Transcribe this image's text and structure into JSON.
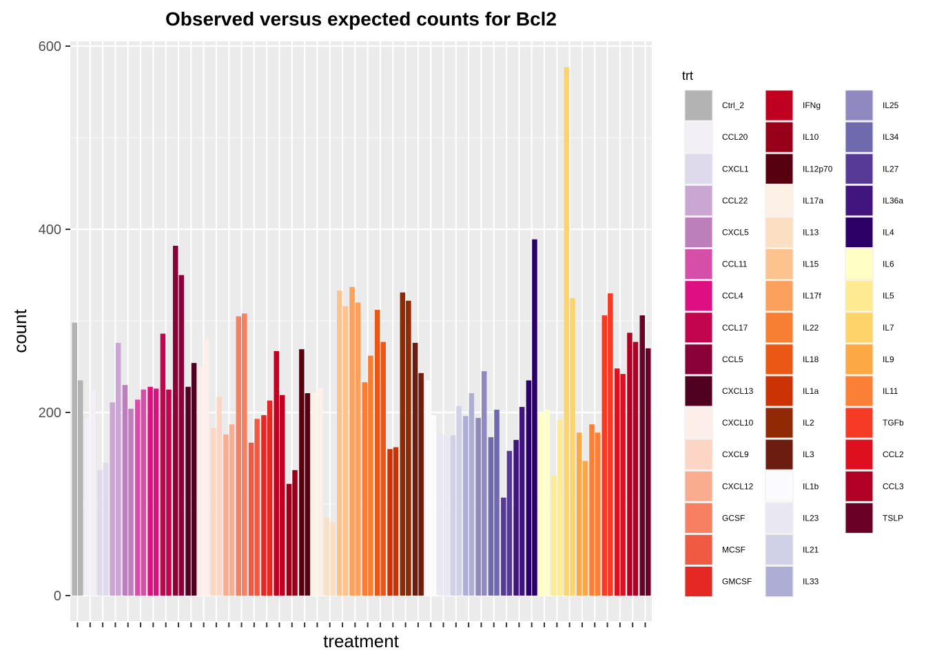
{
  "chart_data": {
    "type": "bar",
    "title": "Observed versus expected counts for Bcl2",
    "xlabel": "treatment",
    "ylabel": "count",
    "ylim": [
      -30,
      610
    ],
    "yticks": [
      0,
      200,
      400,
      600
    ],
    "grid": true,
    "legend": {
      "title": "trt",
      "position": "right",
      "columns": 3
    },
    "series": [
      {
        "name": "Ctrl_2",
        "color": "#B3B3B3",
        "values": [
          298,
          235
        ]
      },
      {
        "name": "CCL20",
        "color": "#F2EFF6",
        "values": [
          194,
          224
        ]
      },
      {
        "name": "CXCL1",
        "color": "#DFDAEB",
        "values": [
          137,
          145
        ]
      },
      {
        "name": "CCL22",
        "color": "#CAA7D2",
        "values": [
          211,
          276
        ]
      },
      {
        "name": "CXCL5",
        "color": "#BD7FBC",
        "values": [
          230,
          204
        ]
      },
      {
        "name": "CCL11",
        "color": "#D54EA8",
        "values": [
          214,
          225
        ]
      },
      {
        "name": "CCL4",
        "color": "#DE0F80",
        "values": [
          228,
          226
        ]
      },
      {
        "name": "CCL17",
        "color": "#C1064D",
        "values": [
          286,
          225
        ]
      },
      {
        "name": "CCL5",
        "color": "#8A0138",
        "values": [
          382,
          350
        ]
      },
      {
        "name": "CXCL13",
        "color": "#500020",
        "values": [
          228,
          254
        ]
      },
      {
        "name": "CXCL10",
        "color": "#FDEEEA",
        "values": [
          250,
          280
        ]
      },
      {
        "name": "CXCL9",
        "color": "#FCD5C4",
        "values": [
          183,
          217
        ]
      },
      {
        "name": "CXCL12",
        "color": "#FAAC8F",
        "values": [
          176,
          187
        ]
      },
      {
        "name": "GCSF",
        "color": "#F77F62",
        "values": [
          305,
          308
        ]
      },
      {
        "name": "MCSF",
        "color": "#F15A42",
        "values": [
          167,
          193
        ]
      },
      {
        "name": "GMCSF",
        "color": "#E52823",
        "values": [
          197,
          213
        ]
      },
      {
        "name": "IFNg",
        "color": "#C00020",
        "values": [
          267,
          219
        ]
      },
      {
        "name": "IL10",
        "color": "#970018",
        "values": [
          122,
          137
        ]
      },
      {
        "name": "IL12p70",
        "color": "#560010",
        "values": [
          269,
          221
        ]
      },
      {
        "name": "IL17a",
        "color": "#FDF1E6",
        "values": [
          222,
          227
        ]
      },
      {
        "name": "IL13",
        "color": "#FCDEC2",
        "values": [
          85,
          80
        ]
      },
      {
        "name": "IL15",
        "color": "#FDC38F",
        "values": [
          333,
          316
        ]
      },
      {
        "name": "IL17f",
        "color": "#FBA05D",
        "values": [
          337,
          320
        ]
      },
      {
        "name": "IL22",
        "color": "#F77F33",
        "values": [
          233,
          262
        ]
      },
      {
        "name": "IL18",
        "color": "#EB5714",
        "values": [
          312,
          277
        ]
      },
      {
        "name": "IL1a",
        "color": "#CB3305",
        "values": [
          160,
          162
        ]
      },
      {
        "name": "IL2",
        "color": "#8F2A05",
        "values": [
          331,
          322
        ]
      },
      {
        "name": "IL3",
        "color": "#6D1D0F",
        "values": [
          276,
          243
        ]
      },
      {
        "name": "IL1b",
        "color": "#FBFAFD",
        "values": [
          235,
          197
        ]
      },
      {
        "name": "IL23",
        "color": "#E9E7F2",
        "values": [
          177,
          175
        ]
      },
      {
        "name": "IL21",
        "color": "#D0D1E7",
        "values": [
          175,
          207
        ]
      },
      {
        "name": "IL33",
        "color": "#ADADD5",
        "values": [
          196,
          221
        ]
      },
      {
        "name": "IL25",
        "color": "#8F88C1",
        "values": [
          194,
          245
        ]
      },
      {
        "name": "IL34",
        "color": "#6F69AE",
        "values": [
          173,
          203
        ]
      },
      {
        "name": "IL27",
        "color": "#573A98",
        "values": [
          107,
          158
        ]
      },
      {
        "name": "IL36a",
        "color": "#40167E",
        "values": [
          170,
          206
        ]
      },
      {
        "name": "IL4",
        "color": "#2A0066",
        "values": [
          235,
          389
        ]
      },
      {
        "name": "IL6",
        "color": "#FFFFC5",
        "values": [
          200,
          203
        ]
      },
      {
        "name": "IL5",
        "color": "#FEEB91",
        "values": [
          131,
          192
        ]
      },
      {
        "name": "IL7",
        "color": "#FED36A",
        "values": [
          577,
          325
        ]
      },
      {
        "name": "IL9",
        "color": "#FCA844",
        "values": [
          178,
          147
        ]
      },
      {
        "name": "IL11",
        "color": "#FB7F35",
        "values": [
          187,
          178
        ]
      },
      {
        "name": "TGFb",
        "color": "#F53A25",
        "values": [
          306,
          330
        ]
      },
      {
        "name": "CCL2",
        "color": "#DE0F1E",
        "values": [
          248,
          242
        ]
      },
      {
        "name": "CCL3",
        "color": "#B10026",
        "values": [
          287,
          277
        ]
      },
      {
        "name": "TSLP",
        "color": "#6A0025",
        "values": [
          306,
          270
        ]
      }
    ]
  }
}
